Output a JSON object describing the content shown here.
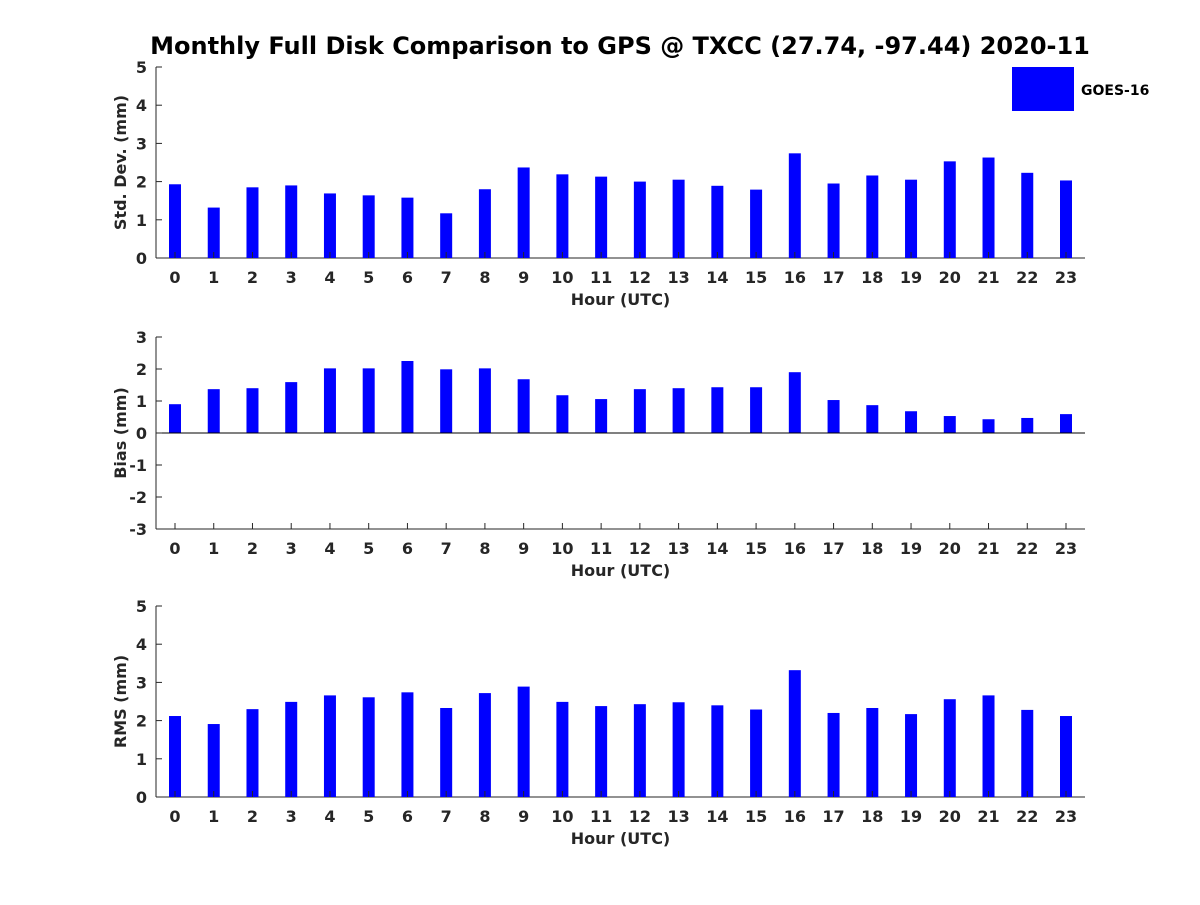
{
  "figure": {
    "title": "Monthly Full Disk Comparison to GPS @ TXCC (27.74, -97.44) 2020-11",
    "legend": {
      "label": "GOES-16",
      "color": "#0000ff"
    }
  },
  "chart_data": [
    {
      "type": "bar",
      "name": "std-dev",
      "categories": [
        "0",
        "1",
        "2",
        "3",
        "4",
        "5",
        "6",
        "7",
        "8",
        "9",
        "10",
        "11",
        "12",
        "13",
        "14",
        "15",
        "16",
        "17",
        "18",
        "19",
        "20",
        "21",
        "22",
        "23"
      ],
      "series": [
        {
          "name": "GOES-16",
          "values": [
            1.93,
            1.32,
            1.85,
            1.9,
            1.69,
            1.64,
            1.58,
            1.17,
            1.8,
            2.37,
            2.19,
            2.13,
            2.0,
            2.05,
            1.89,
            1.79,
            2.74,
            1.95,
            2.16,
            2.05,
            2.53,
            2.63,
            2.23,
            2.03
          ]
        }
      ],
      "xlabel": "Hour (UTC)",
      "ylabel": "Std. Dev. (mm)",
      "ylim": [
        0,
        5
      ],
      "yticks": [
        "0",
        "1",
        "2",
        "3",
        "4",
        "5"
      ],
      "legend_position": "top-right"
    },
    {
      "type": "bar",
      "name": "bias",
      "categories": [
        "0",
        "1",
        "2",
        "3",
        "4",
        "5",
        "6",
        "7",
        "8",
        "9",
        "10",
        "11",
        "12",
        "13",
        "14",
        "15",
        "16",
        "17",
        "18",
        "19",
        "20",
        "21",
        "22",
        "23"
      ],
      "series": [
        {
          "name": "GOES-16",
          "values": [
            0.9,
            1.37,
            1.4,
            1.59,
            2.02,
            2.02,
            2.25,
            1.99,
            2.02,
            1.68,
            1.18,
            1.06,
            1.37,
            1.4,
            1.43,
            1.43,
            1.9,
            1.03,
            0.87,
            0.68,
            0.53,
            0.43,
            0.47,
            0.59
          ]
        }
      ],
      "xlabel": "Hour (UTC)",
      "ylabel": "Bias (mm)",
      "ylim": [
        -3,
        3
      ],
      "yticks": [
        "-3",
        "-2",
        "-1",
        "0",
        "1",
        "2",
        "3"
      ],
      "zero_line": true
    },
    {
      "type": "bar",
      "name": "rms",
      "categories": [
        "0",
        "1",
        "2",
        "3",
        "4",
        "5",
        "6",
        "7",
        "8",
        "9",
        "10",
        "11",
        "12",
        "13",
        "14",
        "15",
        "16",
        "17",
        "18",
        "19",
        "20",
        "21",
        "22",
        "23"
      ],
      "series": [
        {
          "name": "GOES-16",
          "values": [
            2.12,
            1.91,
            2.3,
            2.49,
            2.66,
            2.61,
            2.74,
            2.33,
            2.72,
            2.89,
            2.49,
            2.38,
            2.43,
            2.48,
            2.4,
            2.29,
            3.32,
            2.2,
            2.33,
            2.17,
            2.56,
            2.66,
            2.28,
            2.12
          ]
        }
      ],
      "xlabel": "Hour (UTC)",
      "ylabel": "RMS (mm)",
      "ylim": [
        0,
        5
      ],
      "yticks": [
        "0",
        "1",
        "2",
        "3",
        "4",
        "5"
      ]
    }
  ]
}
